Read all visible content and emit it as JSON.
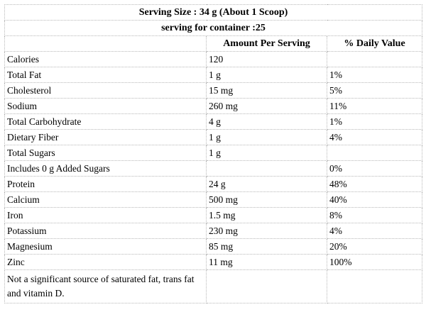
{
  "header": {
    "serving_size": "Serving Size : 34 g (About 1 Scoop)",
    "servings_per_container": "serving for container :25"
  },
  "columns": {
    "nutrient": "",
    "amount": "Amount Per Serving",
    "daily_value": "% Daily Value"
  },
  "rows": [
    {
      "nutrient": "Calories",
      "amount": "120",
      "dv": ""
    },
    {
      "nutrient": "Total Fat",
      "amount": "1 g",
      "dv": "1%"
    },
    {
      "nutrient": "Cholesterol",
      "amount": "15 mg",
      "dv": "5%"
    },
    {
      "nutrient": "Sodium",
      "amount": "260 mg",
      "dv": "11%"
    },
    {
      "nutrient": "Total Carbohydrate",
      "amount": "4 g",
      "dv": "1%"
    },
    {
      "nutrient": "Dietary Fiber",
      "amount": "1 g",
      "dv": "4%"
    },
    {
      "nutrient": "Total Sugars",
      "amount": "1 g",
      "dv": ""
    },
    {
      "nutrient": "Includes 0 g Added Sugars",
      "amount": "",
      "dv": "0%"
    },
    {
      "nutrient": "Protein",
      "amount": "24 g",
      "dv": "48%"
    },
    {
      "nutrient": "Calcium",
      "amount": "500 mg",
      "dv": "40%"
    },
    {
      "nutrient": "Iron",
      "amount": "1.5 mg",
      "dv": "8%"
    },
    {
      "nutrient": "Potassium",
      "amount": "230 mg",
      "dv": "4%"
    },
    {
      "nutrient": "Magnesium",
      "amount": "85 mg",
      "dv": "20%"
    },
    {
      "nutrient": "Zinc",
      "amount": "11 mg",
      "dv": "100%"
    }
  ],
  "footnote": "Not a significant source of saturated fat, trans fat and vitamin D."
}
